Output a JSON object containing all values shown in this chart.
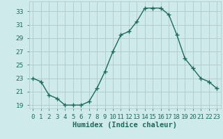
{
  "x": [
    0,
    1,
    2,
    3,
    4,
    5,
    6,
    7,
    8,
    9,
    10,
    11,
    12,
    13,
    14,
    15,
    16,
    17,
    18,
    19,
    20,
    21,
    22,
    23
  ],
  "y": [
    23.0,
    22.5,
    20.5,
    20.0,
    19.0,
    19.0,
    19.0,
    19.5,
    21.5,
    24.0,
    27.0,
    29.5,
    30.0,
    31.5,
    33.5,
    33.5,
    33.5,
    32.5,
    29.5,
    26.0,
    24.5,
    23.0,
    22.5,
    21.5
  ],
  "line_color": "#1a6b5a",
  "marker": "+",
  "marker_size": 4,
  "bg_color": "#ceeaea",
  "grid_color": "#afc8c8",
  "xlabel": "Humidex (Indice chaleur)",
  "ylim": [
    18.5,
    34.5
  ],
  "xlim": [
    -0.5,
    23.5
  ],
  "yticks": [
    19,
    21,
    23,
    25,
    27,
    29,
    31,
    33
  ],
  "xtick_labels": [
    "0",
    "1",
    "2",
    "3",
    "4",
    "5",
    "6",
    "7",
    "8",
    "9",
    "10",
    "11",
    "12",
    "13",
    "14",
    "15",
    "16",
    "17",
    "18",
    "19",
    "20",
    "21",
    "22",
    "23"
  ],
  "tick_fontsize": 6.5,
  "xlabel_fontsize": 7.5,
  "linewidth": 1.0,
  "markeredgewidth": 1.0
}
